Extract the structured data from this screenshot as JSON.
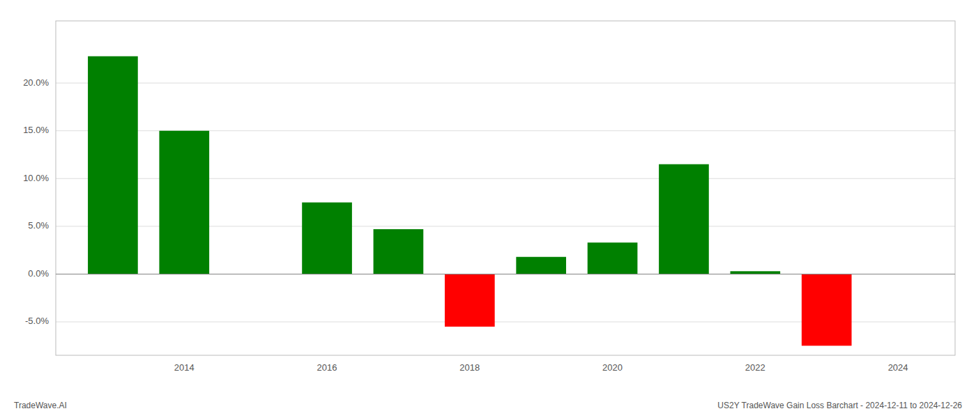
{
  "chart_data": {
    "type": "bar",
    "title": "US2Y TradeWave Gain Loss Barchart - 2024-12-11 to 2024-12-26",
    "annotations": [
      "TradeWave.AI"
    ],
    "x": [
      2013,
      2014,
      2016,
      2017,
      2018,
      2019,
      2020,
      2021,
      2022,
      2023
    ],
    "values": [
      0.228,
      0.15,
      0.075,
      0.047,
      -0.055,
      0.018,
      0.033,
      0.115,
      0.003,
      -0.075
    ],
    "colors": [
      "#008000",
      "#008000",
      "#008000",
      "#008000",
      "#ff0000",
      "#008000",
      "#008000",
      "#008000",
      "#008000",
      "#ff0000"
    ],
    "xlim": [
      2012.2,
      2024.8
    ],
    "ylim": [
      -0.085,
      0.265
    ],
    "xticks": [
      2014,
      2016,
      2018,
      2020,
      2022,
      2024
    ],
    "yticks": [
      {
        "value": -0.05,
        "label": "-5.0%"
      },
      {
        "value": 0.0,
        "label": "0.0%"
      },
      {
        "value": 0.05,
        "label": "5.0%"
      },
      {
        "value": 0.1,
        "label": "10.0%"
      },
      {
        "value": 0.15,
        "label": "15.0%"
      },
      {
        "value": 0.2,
        "label": "20.0%"
      }
    ],
    "grid": true
  }
}
